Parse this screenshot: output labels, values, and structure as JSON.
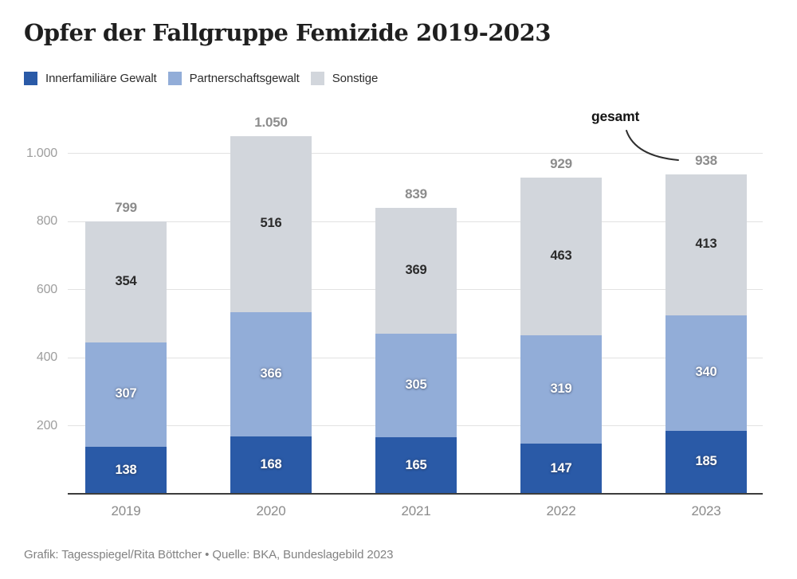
{
  "title": "Opfer der Fallgruppe Femizide 2019-2023",
  "legend": {
    "items": [
      {
        "key": "innerfamiliaere-gewalt",
        "label": "Innerfamiliäre Gewalt",
        "color": "#2a5aa7"
      },
      {
        "key": "partnerschaftsgewalt",
        "label": "Partnerschaftsgewalt",
        "color": "#92add8"
      },
      {
        "key": "sonstige",
        "label": "Sonstige",
        "color": "#d2d6dc"
      }
    ]
  },
  "annotation": {
    "label": "gesamt"
  },
  "footer": {
    "credit": "Grafik: Tagesspiegel/Rita Böttcher • Quelle: BKA, Bundeslagebild 2023"
  },
  "colors": {
    "series_dark_blue": "#2a5aa7",
    "series_light_blue": "#92add8",
    "series_gray": "#d2d6dc",
    "gridline": "#e2e2e2",
    "axis_line": "#3d3d3d",
    "axis_text": "#9e9e9e",
    "total_text": "#8c8c8c"
  },
  "chart_data": {
    "type": "bar",
    "stacked": true,
    "title": "Opfer der Fallgruppe Femizide 2019-2023",
    "xlabel": "",
    "ylabel": "",
    "categories": [
      "2019",
      "2020",
      "2021",
      "2022",
      "2023"
    ],
    "series": [
      {
        "name": "Innerfamiliäre Gewalt",
        "key": "innerfamiliaere-gewalt",
        "color": "#2a5aa7",
        "label_color": "light",
        "values": [
          138,
          168,
          165,
          147,
          185
        ]
      },
      {
        "name": "Partnerschaftsgewalt",
        "key": "partnerschaftsgewalt",
        "color": "#92add8",
        "label_color": "light",
        "values": [
          307,
          366,
          305,
          319,
          340
        ]
      },
      {
        "name": "Sonstige",
        "key": "sonstige",
        "color": "#d2d6dc",
        "label_color": "#2b2b2b",
        "values": [
          354,
          516,
          369,
          463,
          413
        ]
      }
    ],
    "totals": [
      "799",
      "1.050",
      "839",
      "929",
      "938"
    ],
    "annotation": "gesamt",
    "y_ticks": [
      {
        "label": "200",
        "value": 200
      },
      {
        "label": "400",
        "value": 400
      },
      {
        "label": "600",
        "value": 600
      },
      {
        "label": "800",
        "value": 800
      },
      {
        "label": "1.000",
        "value": 1000
      }
    ],
    "ylim": [
      0,
      1100
    ],
    "grid": true,
    "legend_position": "top"
  }
}
